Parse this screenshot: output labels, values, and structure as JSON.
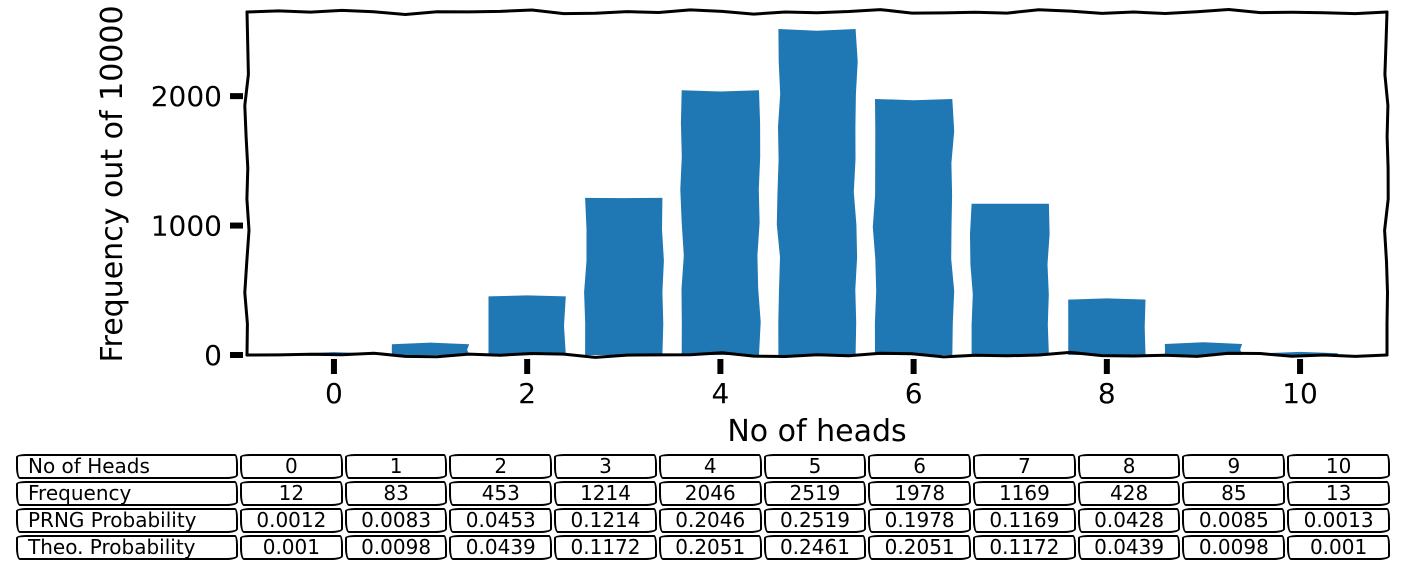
{
  "chart_data": {
    "type": "bar",
    "title": "",
    "xlabel": "No of heads",
    "ylabel": "Frequency out of 10000",
    "categories": [
      0,
      1,
      2,
      3,
      4,
      5,
      6,
      7,
      8,
      9,
      10
    ],
    "values": [
      12,
      83,
      453,
      1214,
      2046,
      2519,
      1978,
      1169,
      428,
      85,
      13
    ],
    "xticks": [
      0,
      2,
      4,
      6,
      8,
      10
    ],
    "yticks": [
      0,
      1000,
      2000
    ],
    "xlim": [
      -0.9,
      10.9
    ],
    "ylim": [
      0,
      2650
    ],
    "bar_width": 0.8,
    "bar_color": "#1f77b4",
    "axis_color": "#000000",
    "background_color": "#ffffff",
    "style": "xkcd-hand-drawn",
    "grid": false,
    "legend": false
  },
  "table": {
    "rows": [
      {
        "label": "No of Heads",
        "values": [
          "0",
          "1",
          "2",
          "3",
          "4",
          "5",
          "6",
          "7",
          "8",
          "9",
          "10"
        ]
      },
      {
        "label": "Frequency",
        "values": [
          "12",
          "83",
          "453",
          "1214",
          "2046",
          "2519",
          "1978",
          "1169",
          "428",
          "85",
          "13"
        ]
      },
      {
        "label": "PRNG Probability",
        "values": [
          "0.0012",
          "0.0083",
          "0.0453",
          "0.1214",
          "0.2046",
          "0.2519",
          "0.1978",
          "0.1169",
          "0.0428",
          "0.0085",
          "0.0013"
        ]
      },
      {
        "label": "Theo. Probability",
        "values": [
          "0.001",
          "0.0098",
          "0.0439",
          "0.1172",
          "0.2051",
          "0.2461",
          "0.2051",
          "0.1172",
          "0.0439",
          "0.0098",
          "0.001"
        ]
      }
    ]
  }
}
